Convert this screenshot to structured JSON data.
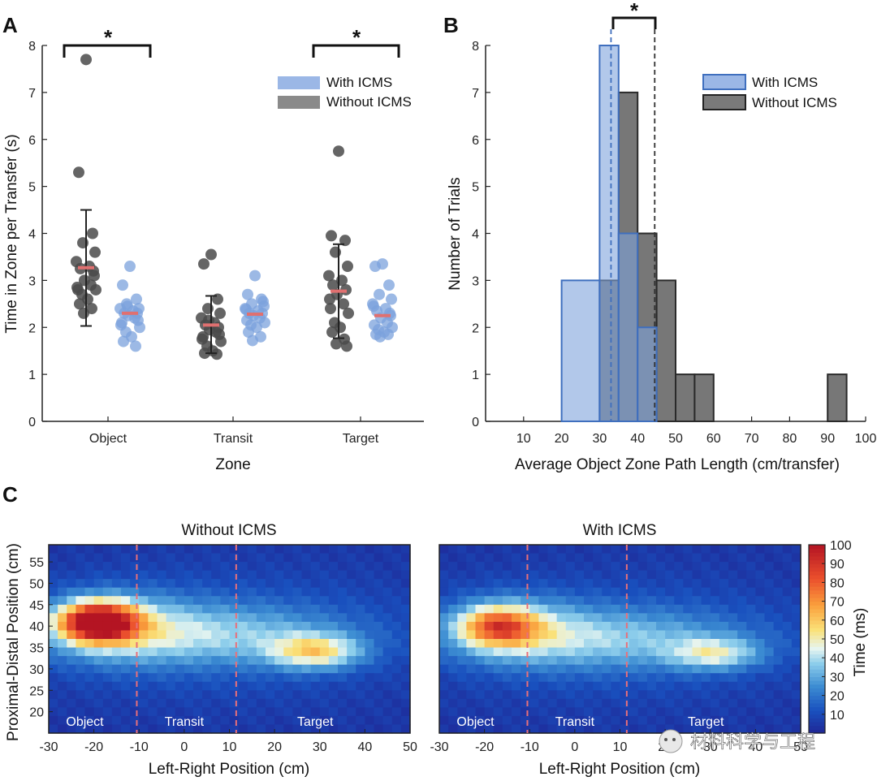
{
  "watermark": "材料科学与工程",
  "panels": {
    "a": "A",
    "b": "B",
    "c": "C"
  },
  "chart_data": [
    {
      "type": "scatter",
      "panel": "A",
      "xlabel": "Zone",
      "ylabel": "Time in Zone per Transfer (s)",
      "categories": [
        "Object",
        "Transit",
        "Target"
      ],
      "ylim": [
        0,
        8
      ],
      "yticks": [
        "0",
        "1",
        "2",
        "3",
        "4",
        "5",
        "6",
        "7",
        "8"
      ],
      "legend": {
        "with": "With ICMS",
        "without": "Without ICMS",
        "position": "top-right"
      },
      "significance": "*",
      "colors": {
        "with": "#7ba1dc",
        "without": "#4a4a4a",
        "mean": "#e07070"
      },
      "groups": [
        {
          "zone": "Object",
          "series": "Without ICMS",
          "mean": 3.27,
          "err": [
            2.03,
            4.5
          ],
          "points": [
            7.7,
            5.3,
            4.0,
            3.8,
            3.6,
            3.4,
            3.3,
            3.25,
            3.2,
            3.0,
            2.9,
            2.8,
            2.8,
            2.7,
            2.6,
            2.5,
            2.4,
            2.3,
            3.1,
            2.85
          ]
        },
        {
          "zone": "Object",
          "series": "With ICMS",
          "mean": 2.3,
          "err": null,
          "points": [
            3.3,
            2.9,
            2.6,
            2.5,
            2.4,
            2.4,
            2.35,
            2.3,
            2.3,
            2.25,
            2.2,
            2.1,
            2.0,
            1.9,
            1.8,
            1.7,
            1.6,
            2.45,
            2.15,
            2.05
          ]
        },
        {
          "zone": "Transit",
          "series": "Without ICMS",
          "mean": 2.05,
          "err": [
            1.45,
            2.67
          ],
          "points": [
            3.55,
            3.35,
            2.6,
            2.4,
            2.3,
            2.2,
            2.1,
            2.05,
            2.0,
            1.95,
            1.9,
            1.8,
            1.7,
            1.6,
            1.5,
            1.45,
            1.43,
            2.15,
            1.85,
            1.75
          ]
        },
        {
          "zone": "Transit",
          "series": "With ICMS",
          "mean": 2.28,
          "err": null,
          "points": [
            3.1,
            2.7,
            2.6,
            2.5,
            2.45,
            2.4,
            2.35,
            2.3,
            2.3,
            2.25,
            2.2,
            2.15,
            2.1,
            2.05,
            2.0,
            1.9,
            1.8,
            1.72,
            2.55,
            2.38
          ]
        },
        {
          "zone": "Target",
          "series": "Without ICMS",
          "mean": 2.77,
          "err": [
            1.77,
            3.77
          ],
          "points": [
            5.75,
            3.95,
            3.85,
            3.6,
            3.3,
            3.1,
            3.0,
            2.9,
            2.8,
            2.7,
            2.5,
            2.4,
            2.3,
            2.1,
            2.0,
            1.9,
            1.75,
            1.65,
            1.6,
            2.6
          ]
        },
        {
          "zone": "Target",
          "series": "With ICMS",
          "mean": 2.25,
          "err": null,
          "points": [
            3.35,
            3.3,
            2.9,
            2.7,
            2.6,
            2.5,
            2.4,
            2.35,
            2.3,
            2.2,
            2.1,
            2.05,
            2.0,
            1.95,
            1.9,
            1.85,
            1.85,
            1.8,
            2.25,
            2.45
          ]
        }
      ]
    },
    {
      "type": "bar",
      "panel": "B",
      "xlabel": "Average Object Zone Path Length (cm/transfer)",
      "ylabel": "Number of Trials",
      "xlim": [
        0,
        100
      ],
      "ylim": [
        0,
        8
      ],
      "xticks": [
        "10",
        "20",
        "30",
        "40",
        "50",
        "60",
        "70",
        "80",
        "90",
        "100"
      ],
      "yticks": [
        "0",
        "1",
        "2",
        "3",
        "4",
        "5",
        "6",
        "7",
        "8"
      ],
      "legend": {
        "with": "With ICMS",
        "without": "Without ICMS",
        "position": "top-right"
      },
      "significance": "*",
      "colors": {
        "with_fill": "#7ea3dc",
        "with_edge": "#3f6fbe",
        "without_fill": "#777777",
        "without_edge": "#2a2a2a"
      },
      "means": {
        "with": 33,
        "without": 44.5
      },
      "series": [
        {
          "name": "Without ICMS",
          "bins": [
            [
              30,
              35,
              3
            ],
            [
              35,
              40,
              7
            ],
            [
              40,
              45,
              4
            ],
            [
              45,
              50,
              3
            ],
            [
              50,
              55,
              1
            ],
            [
              55,
              60,
              1
            ],
            [
              90,
              95,
              1
            ]
          ]
        },
        {
          "name": "With ICMS",
          "bins": [
            [
              20,
              30,
              3
            ],
            [
              30,
              35,
              8
            ],
            [
              35,
              40,
              4
            ],
            [
              40,
              45,
              2
            ]
          ]
        }
      ]
    },
    {
      "type": "heatmap",
      "panel": "C",
      "titles": [
        "Without ICMS",
        "With ICMS"
      ],
      "xlabel": "Left-Right Position (cm)",
      "ylabel": "Proximal-Distal Position (cm)",
      "xlim": [
        -30,
        50
      ],
      "ylim": [
        15,
        59
      ],
      "xticks": [
        "-30",
        "-20",
        "-10",
        "0",
        "10",
        "20",
        "30",
        "40",
        "50"
      ],
      "yticks": [
        "20",
        "25",
        "30",
        "35",
        "40",
        "45",
        "50",
        "55"
      ],
      "colorbar": {
        "label": "Time (ms)",
        "min": 0,
        "max": 100,
        "ticks": [
          "10",
          "20",
          "30",
          "40",
          "50",
          "60",
          "70",
          "80",
          "90",
          "100"
        ]
      },
      "zone_boundaries": [
        -10.5,
        11.5
      ],
      "zone_labels": [
        "Object",
        "Transit",
        "Target"
      ],
      "blobs": [
        [
          {
            "x": -19,
            "y": 41,
            "sx": 6,
            "sy": 3.2,
            "a": 88
          },
          {
            "x": -16,
            "y": 40,
            "sx": 12,
            "sy": 6,
            "a": 22
          },
          {
            "x": 5,
            "y": 38,
            "sx": 22,
            "sy": 5,
            "a": 24
          },
          {
            "x": 29,
            "y": 34,
            "sx": 7,
            "sy": 2.8,
            "a": 40
          },
          {
            "x": 10,
            "y": 38,
            "sx": 30,
            "sy": 11,
            "a": 10
          }
        ],
        [
          {
            "x": -17,
            "y": 40,
            "sx": 6,
            "sy": 3.2,
            "a": 50
          },
          {
            "x": -14,
            "y": 39.5,
            "sx": 11,
            "sy": 5.5,
            "a": 22
          },
          {
            "x": 7,
            "y": 37,
            "sx": 22,
            "sy": 5,
            "a": 24
          },
          {
            "x": 31,
            "y": 33.5,
            "sx": 7,
            "sy": 2.6,
            "a": 30
          },
          {
            "x": 10,
            "y": 37,
            "sx": 30,
            "sy": 11,
            "a": 9
          }
        ]
      ]
    }
  ]
}
